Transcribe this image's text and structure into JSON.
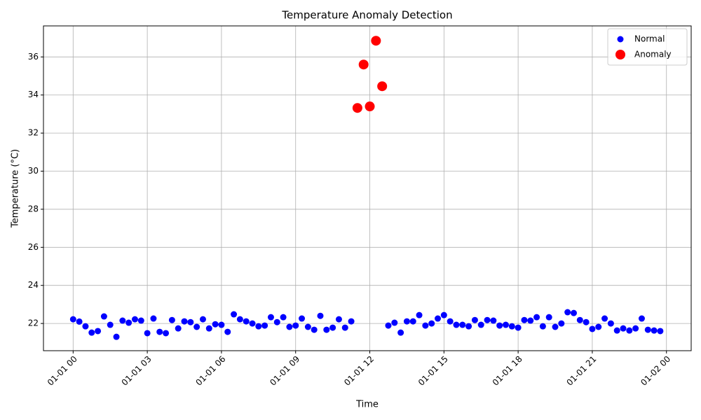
{
  "chart_data": {
    "type": "scatter",
    "title": "Temperature Anomaly Detection",
    "x_label": "Time",
    "y_label": "Temperature (°C)",
    "xlim": [
      -1.2,
      25.0
    ],
    "ylim": [
      20.57,
      37.63
    ],
    "xticks": [
      {
        "value": 0,
        "label": "01-01 00"
      },
      {
        "value": 3,
        "label": "01-01 03"
      },
      {
        "value": 6,
        "label": "01-01 06"
      },
      {
        "value": 9,
        "label": "01-01 09"
      },
      {
        "value": 12,
        "label": "01-01 12"
      },
      {
        "value": 15,
        "label": "01-01 15"
      },
      {
        "value": 18,
        "label": "01-01 18"
      },
      {
        "value": 21,
        "label": "01-01 21"
      },
      {
        "value": 24,
        "label": "01-02 00"
      }
    ],
    "yticks": [
      22,
      24,
      26,
      28,
      30,
      32,
      34,
      36
    ],
    "grid": true,
    "legend": "upper right",
    "series": [
      {
        "name": "Normal",
        "color": "#0000ff",
        "size": 4.5,
        "x": [
          0,
          0.25,
          0.5,
          0.75,
          1,
          1.25,
          1.5,
          1.75,
          2,
          2.25,
          2.5,
          2.75,
          3,
          3.25,
          3.5,
          3.75,
          4,
          4.25,
          4.5,
          4.75,
          5,
          5.25,
          5.5,
          5.75,
          6,
          6.25,
          6.5,
          6.75,
          7,
          7.25,
          7.5,
          7.75,
          8,
          8.25,
          8.5,
          8.75,
          9,
          9.25,
          9.5,
          9.75,
          10,
          10.25,
          10.5,
          10.75,
          11,
          11.25,
          12.75,
          13,
          13.25,
          13.5,
          13.75,
          14,
          14.25,
          14.5,
          14.75,
          15,
          15.25,
          15.5,
          15.75,
          16,
          16.25,
          16.5,
          16.75,
          17,
          17.25,
          17.5,
          17.75,
          18,
          18.25,
          18.5,
          18.75,
          19,
          19.25,
          19.5,
          19.75,
          20,
          20.25,
          20.5,
          20.75,
          21,
          21.25,
          21.5,
          21.75,
          22,
          22.25,
          22.5,
          22.75,
          23,
          23.25,
          23.5,
          23.75
        ],
        "values": [
          22.22,
          22.1,
          21.85,
          21.52,
          21.6,
          22.37,
          21.93,
          21.3,
          22.15,
          22.04,
          22.22,
          22.15,
          21.49,
          22.26,
          21.56,
          21.49,
          22.18,
          21.74,
          22.11,
          22.07,
          21.82,
          22.22,
          21.74,
          21.96,
          21.93,
          21.56,
          22.48,
          22.22,
          22.11,
          22.0,
          21.85,
          21.89,
          22.33,
          22.07,
          22.33,
          21.82,
          21.89,
          22.26,
          21.82,
          21.67,
          22.4,
          21.67,
          21.78,
          22.22,
          21.78,
          22.11,
          21.89,
          22.04,
          21.52,
          22.11,
          22.11,
          22.44,
          21.89,
          22.0,
          22.26,
          22.44,
          22.11,
          21.93,
          21.93,
          21.85,
          22.18,
          21.93,
          22.18,
          22.15,
          21.89,
          21.93,
          21.85,
          21.78,
          22.18,
          22.15,
          22.33,
          21.85,
          22.33,
          21.82,
          22.0,
          22.59,
          22.55,
          22.18,
          22.07,
          21.71,
          21.82,
          22.26,
          22.0,
          21.63,
          21.74,
          21.63,
          21.74,
          22.26,
          21.67,
          21.63,
          21.6
        ]
      },
      {
        "name": "Anomaly",
        "color": "#ff0000",
        "size": 7,
        "x": [
          11.5,
          11.75,
          12,
          12.25,
          12.5
        ],
        "values": [
          33.32,
          35.6,
          33.4,
          36.85,
          34.46
        ]
      }
    ]
  }
}
